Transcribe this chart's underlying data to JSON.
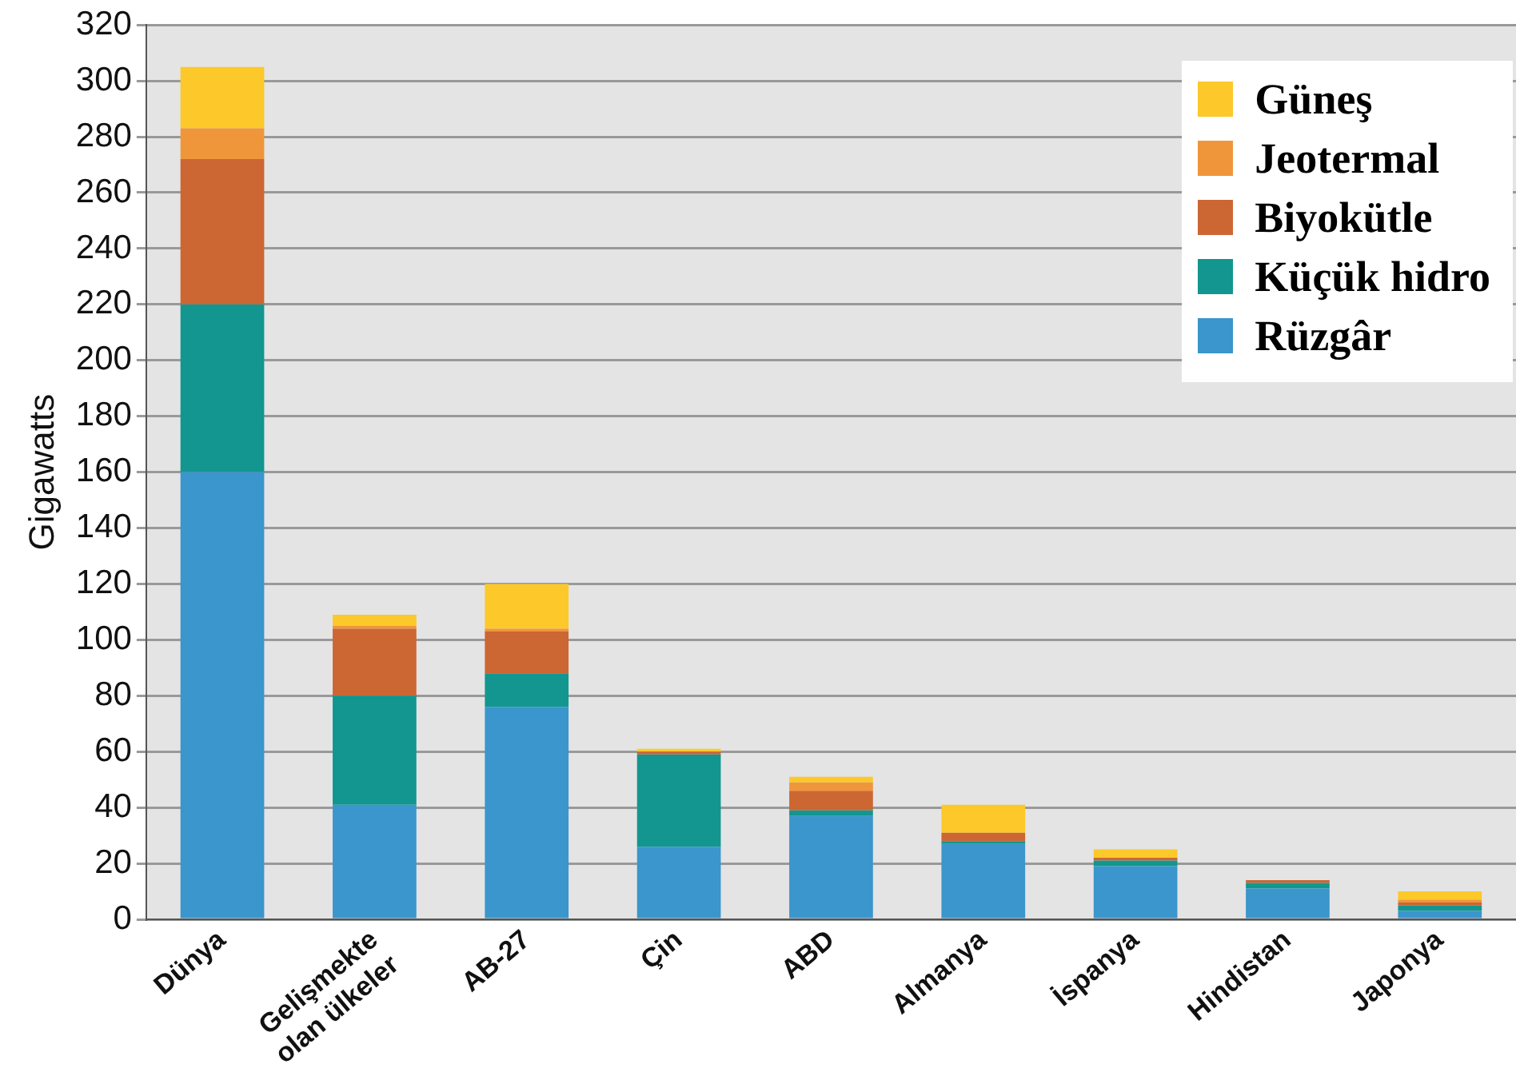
{
  "chart_data": {
    "type": "bar",
    "stacked": true,
    "ylabel": "Gigawatts",
    "categories": [
      "Dünya",
      "Gelişmekte\nolan ülkeler",
      "AB-27",
      "Çin",
      "ABD",
      "Almanya",
      "İspanya",
      "Hindistan",
      "Japonya"
    ],
    "series": [
      {
        "name": "Rüzgâr",
        "color": "#3a96cc",
        "values": [
          160,
          41,
          76,
          26,
          37,
          27,
          19,
          11,
          3
        ]
      },
      {
        "name": "Küçük hidro",
        "color": "#12968f",
        "values": [
          60,
          39,
          12,
          33,
          2,
          1,
          2,
          2,
          2
        ]
      },
      {
        "name": "Biyokütle",
        "color": "#cc6633",
        "values": [
          52,
          24,
          15,
          1,
          7,
          3,
          1,
          1,
          1
        ]
      },
      {
        "name": "Jeotermal",
        "color": "#f0963a",
        "values": [
          11,
          1,
          1,
          0,
          3,
          0,
          0,
          0,
          1
        ]
      },
      {
        "name": "Güneş",
        "color": "#fcc82a",
        "values": [
          22,
          4,
          16,
          1,
          2,
          10,
          3,
          0,
          3
        ]
      }
    ],
    "ylim": [
      0,
      320
    ],
    "yticks": [
      0,
      20,
      40,
      60,
      80,
      100,
      120,
      140,
      160,
      180,
      200,
      220,
      240,
      260,
      280,
      300,
      320
    ],
    "grid": "y",
    "legend": "top right"
  }
}
